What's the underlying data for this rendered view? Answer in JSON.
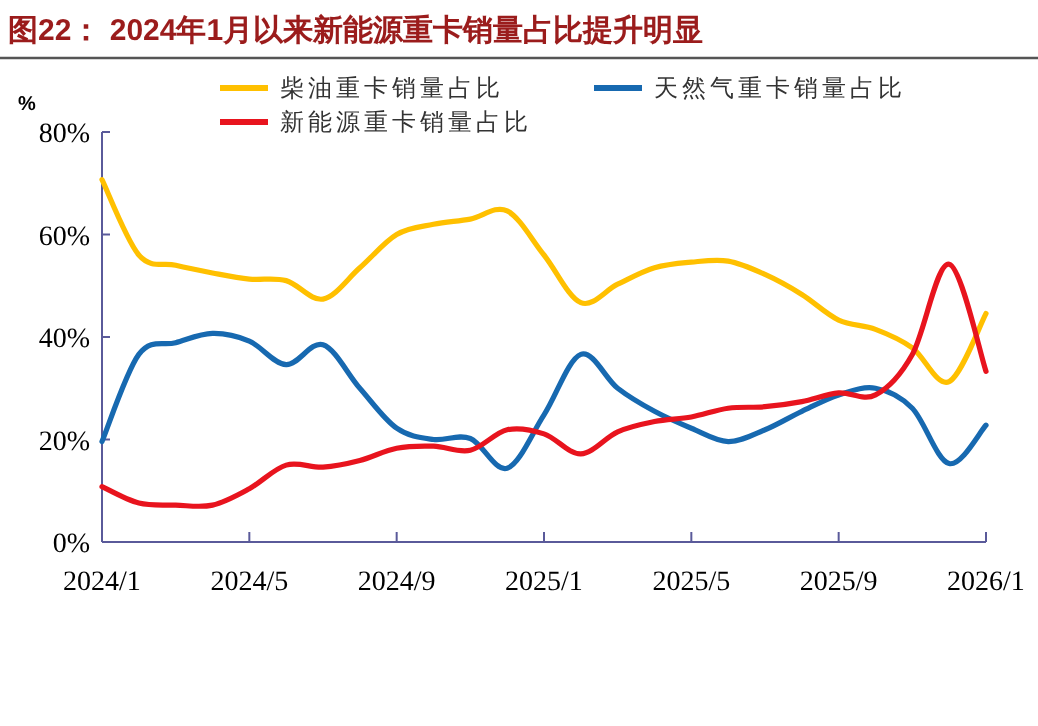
{
  "chart_data": {
    "type": "line",
    "title": "图22：  2024年1月以来新能源重卡销量占比提升明显",
    "ylabel": "%",
    "categories": [
      "2024/1",
      null,
      null,
      null,
      "2024/5",
      null,
      null,
      null,
      "2024/9",
      null,
      null,
      null,
      "2025/1",
      null,
      null,
      null,
      "2025/5",
      null,
      null,
      null,
      "2025/9",
      null,
      null,
      null,
      "2026/1"
    ],
    "ylim": [
      0,
      80
    ],
    "yticks": [
      {
        "value": 0,
        "label": "0%"
      },
      {
        "value": 20,
        "label": "20%"
      },
      {
        "value": 40,
        "label": "40%"
      },
      {
        "value": 60,
        "label": "60%"
      },
      {
        "value": 80,
        "label": "80%"
      }
    ],
    "grid": false,
    "legend": "top",
    "marker": "none",
    "line_style": "solid",
    "series": [
      {
        "name": "柴油重卡销量占比",
        "color": "#ffc000",
        "values": [
          70.7,
          56,
          54,
          52.5,
          51.3,
          51,
          47.4,
          53.5,
          60,
          62,
          63,
          64.6,
          56,
          46.7,
          50.3,
          53.5,
          54.6,
          54.8,
          52.2,
          48.3,
          43.3,
          41.5,
          37.9,
          31.3,
          44.6
        ]
      },
      {
        "name": "天然气重卡销量占比",
        "color": "#1769b0",
        "values": [
          19.6,
          36.6,
          38.9,
          40.7,
          39.2,
          34.6,
          38.5,
          30,
          22.2,
          20,
          20.2,
          14.4,
          24.8,
          36.6,
          30,
          25.5,
          22.2,
          19.6,
          21.9,
          25.5,
          28.7,
          30,
          26.1,
          15.3,
          22.8
        ]
      },
      {
        "name": "新能源重卡销量占比",
        "color": "#e8141e",
        "values": [
          10.8,
          7.6,
          7.2,
          7.2,
          10.4,
          15,
          14.6,
          15.9,
          18.3,
          18.7,
          17.9,
          21.9,
          21.1,
          17.2,
          21.5,
          23.5,
          24.4,
          26.1,
          26.4,
          27.4,
          29.1,
          28.7,
          36.6,
          54.2,
          33.3
        ]
      }
    ]
  }
}
